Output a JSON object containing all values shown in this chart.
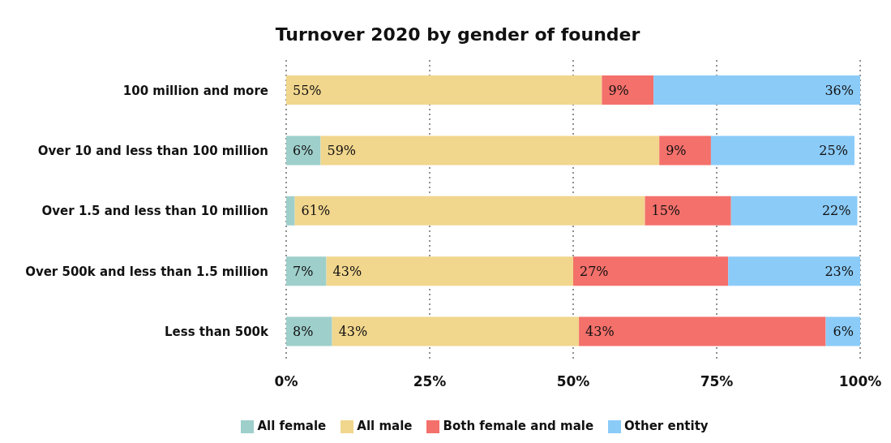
{
  "chart_data": {
    "type": "bar",
    "orientation": "horizontal",
    "stacked": true,
    "title": "Turnover 2020 by gender of founder",
    "categories": [
      "100 million and more",
      "Over 10 and less than 100 million",
      "Over 1.5 and less than 10 million",
      "Over 500k and less than 1.5 million",
      "Less than 500k"
    ],
    "series": [
      {
        "name": "All female",
        "color": "#9ecfcb",
        "values": [
          null,
          6,
          1.5,
          7,
          8
        ],
        "value_labels": [
          null,
          "6%",
          null,
          "7%",
          "8%"
        ]
      },
      {
        "name": "All male",
        "color": "#f1d68d",
        "values": [
          55,
          59,
          61,
          43,
          43
        ],
        "value_labels": [
          "55%",
          "59%",
          "61%",
          "43%",
          "43%"
        ]
      },
      {
        "name": "Both female and male",
        "color": "#f4706b",
        "values": [
          9,
          9,
          15,
          27,
          43
        ],
        "value_labels": [
          "9%",
          "9%",
          "15%",
          "27%",
          "43%"
        ]
      },
      {
        "name": "Other entity",
        "color": "#8bcbf8",
        "values": [
          36,
          25,
          22,
          23,
          6
        ],
        "value_labels": [
          "36%",
          "25%",
          "22%",
          "23%",
          "6%"
        ]
      }
    ],
    "xlim": [
      0,
      100
    ],
    "xticks": [
      {
        "value": 0,
        "label": "0%"
      },
      {
        "value": 25,
        "label": "25%"
      },
      {
        "value": 50,
        "label": "50%"
      },
      {
        "value": 75,
        "label": "75%"
      },
      {
        "value": 100,
        "label": "100%"
      }
    ],
    "grid": "x",
    "legend": "bottom"
  }
}
